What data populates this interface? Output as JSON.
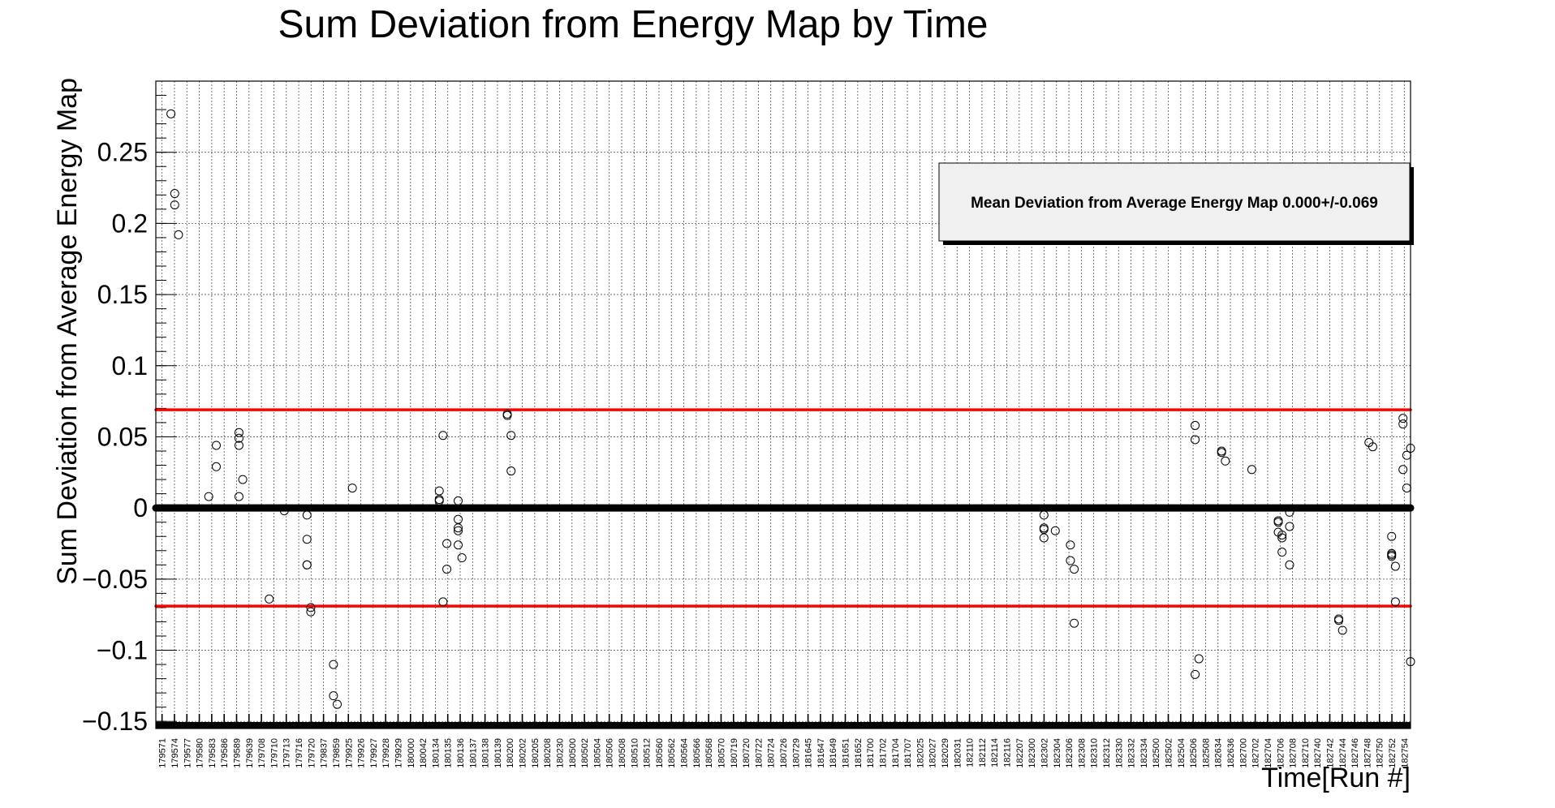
{
  "chart_data": {
    "type": "scatter",
    "title": "Sum Deviation from Energy Map by Time",
    "xlabel": "Time[Run #]",
    "ylabel": "Sum Deviation from Average Energy Map",
    "ylim": [
      -0.155,
      0.3
    ],
    "yticks": [
      {
        "value": 0.25,
        "label": "0.25"
      },
      {
        "value": 0.2,
        "label": "0.2"
      },
      {
        "value": 0.15,
        "label": "0.15"
      },
      {
        "value": 0.1,
        "label": "0.1"
      },
      {
        "value": 0.05,
        "label": "0.05"
      },
      {
        "value": 0,
        "label": "0"
      },
      {
        "value": -0.05,
        "label": "−0.05"
      },
      {
        "value": -0.1,
        "label": "−0.1"
      },
      {
        "value": -0.15,
        "label": "−0.15"
      }
    ],
    "grid": true,
    "legend": {
      "text": "Mean Deviation from Average Energy Map 0.000+/-0.069",
      "placement": "top-right"
    },
    "reference_lines": [
      {
        "y": 0.069,
        "color": "#ff0000"
      },
      {
        "y": -0.069,
        "color": "#ff0000"
      },
      {
        "y": 0,
        "color": "#000000"
      }
    ],
    "x_tick_labels": [
      "179571",
      "179574",
      "179577",
      "179580",
      "179583",
      "179586",
      "179589",
      "179639",
      "179708",
      "179710",
      "179713",
      "179716",
      "179720",
      "179837",
      "179859",
      "179925",
      "179926",
      "179927",
      "179928",
      "179929",
      "180000",
      "180042",
      "180134",
      "180135",
      "180136",
      "180137",
      "180138",
      "180139",
      "180200",
      "180202",
      "180205",
      "180208",
      "180230",
      "180500",
      "180502",
      "180504",
      "180506",
      "180508",
      "180510",
      "180512",
      "180560",
      "180562",
      "180564",
      "180566",
      "180568",
      "180570",
      "180719",
      "180720",
      "180722",
      "180724",
      "180726",
      "180729",
      "181645",
      "181647",
      "181649",
      "181651",
      "181652",
      "181700",
      "181702",
      "181704",
      "181707",
      "182025",
      "182027",
      "182029",
      "182031",
      "182110",
      "182112",
      "182114",
      "182116",
      "182207",
      "182300",
      "182302",
      "182304",
      "182306",
      "182308",
      "182310",
      "182312",
      "182330",
      "182332",
      "182334",
      "182500",
      "182502",
      "182504",
      "182506",
      "182508",
      "182634",
      "182636",
      "182700",
      "182702",
      "182704",
      "182706",
      "182708",
      "182710",
      "182740",
      "182742",
      "182744",
      "182746",
      "182748",
      "182750",
      "182752",
      "182754"
    ],
    "points": [
      {
        "x": 4,
        "y": 0.277
      },
      {
        "x": 5,
        "y": 0.221
      },
      {
        "x": 5,
        "y": 0.213
      },
      {
        "x": 6,
        "y": 0.192
      },
      {
        "x": 14,
        "y": 0.008
      },
      {
        "x": 16,
        "y": 0.044
      },
      {
        "x": 16,
        "y": 0.029
      },
      {
        "x": 22,
        "y": 0.053
      },
      {
        "x": 22,
        "y": 0.049
      },
      {
        "x": 22,
        "y": 0.044
      },
      {
        "x": 23,
        "y": 0.02
      },
      {
        "x": 22,
        "y": 0.008
      },
      {
        "x": 30,
        "y": -0.064
      },
      {
        "x": 34,
        "y": -0.002
      },
      {
        "x": 40,
        "y": -0.005
      },
      {
        "x": 40,
        "y": -0.022
      },
      {
        "x": 40,
        "y": -0.04
      },
      {
        "x": 40,
        "y": -0.04
      },
      {
        "x": 41,
        "y": -0.07
      },
      {
        "x": 41,
        "y": -0.073
      },
      {
        "x": 47,
        "y": -0.11
      },
      {
        "x": 47,
        "y": -0.132
      },
      {
        "x": 48,
        "y": -0.138
      },
      {
        "x": 52,
        "y": 0.014
      },
      {
        "x": 75,
        "y": 0.012
      },
      {
        "x": 75,
        "y": 0.006
      },
      {
        "x": 75,
        "y": 0.005
      },
      {
        "x": 76,
        "y": 0.051
      },
      {
        "x": 77,
        "y": -0.025
      },
      {
        "x": 77,
        "y": -0.043
      },
      {
        "x": 76,
        "y": -0.066
      },
      {
        "x": 80,
        "y": 0.005
      },
      {
        "x": 80,
        "y": -0.008
      },
      {
        "x": 80,
        "y": -0.014
      },
      {
        "x": 80,
        "y": -0.016
      },
      {
        "x": 80,
        "y": -0.026
      },
      {
        "x": 81,
        "y": -0.035
      },
      {
        "x": 93,
        "y": 0.066
      },
      {
        "x": 93,
        "y": 0.065
      },
      {
        "x": 94,
        "y": 0.051
      },
      {
        "x": 94,
        "y": 0.026
      },
      {
        "x": 235,
        "y": -0.005
      },
      {
        "x": 235,
        "y": -0.014
      },
      {
        "x": 235,
        "y": -0.015
      },
      {
        "x": 235,
        "y": -0.021
      },
      {
        "x": 238,
        "y": -0.016
      },
      {
        "x": 242,
        "y": -0.026
      },
      {
        "x": 242,
        "y": -0.037
      },
      {
        "x": 243,
        "y": -0.043
      },
      {
        "x": 243,
        "y": -0.081
      },
      {
        "x": 275,
        "y": 0.058
      },
      {
        "x": 275,
        "y": 0.048
      },
      {
        "x": 276,
        "y": -0.106
      },
      {
        "x": 275,
        "y": -0.117
      },
      {
        "x": 282,
        "y": 0.04
      },
      {
        "x": 282,
        "y": 0.039
      },
      {
        "x": 283,
        "y": 0.033
      },
      {
        "x": 290,
        "y": 0.027
      },
      {
        "x": 297,
        "y": -0.009
      },
      {
        "x": 297,
        "y": -0.01
      },
      {
        "x": 297,
        "y": -0.017
      },
      {
        "x": 298,
        "y": -0.019
      },
      {
        "x": 298,
        "y": -0.021
      },
      {
        "x": 298,
        "y": -0.031
      },
      {
        "x": 300,
        "y": -0.003
      },
      {
        "x": 300,
        "y": -0.013
      },
      {
        "x": 300,
        "y": -0.04
      },
      {
        "x": 313,
        "y": -0.078
      },
      {
        "x": 313,
        "y": -0.079
      },
      {
        "x": 314,
        "y": -0.086
      },
      {
        "x": 321,
        "y": 0.046
      },
      {
        "x": 322,
        "y": 0.043
      },
      {
        "x": 327,
        "y": -0.02
      },
      {
        "x": 327,
        "y": -0.032
      },
      {
        "x": 327,
        "y": -0.033
      },
      {
        "x": 327,
        "y": -0.034
      },
      {
        "x": 328,
        "y": -0.041
      },
      {
        "x": 328,
        "y": -0.066
      },
      {
        "x": 330,
        "y": 0.063
      },
      {
        "x": 330,
        "y": 0.059
      },
      {
        "x": 331,
        "y": 0.037
      },
      {
        "x": 330,
        "y": 0.027
      },
      {
        "x": 331,
        "y": 0.014
      },
      {
        "x": 332,
        "y": 0.042
      },
      {
        "x": 332,
        "y": -0.108
      }
    ],
    "x_range": [
      0,
      332
    ]
  }
}
